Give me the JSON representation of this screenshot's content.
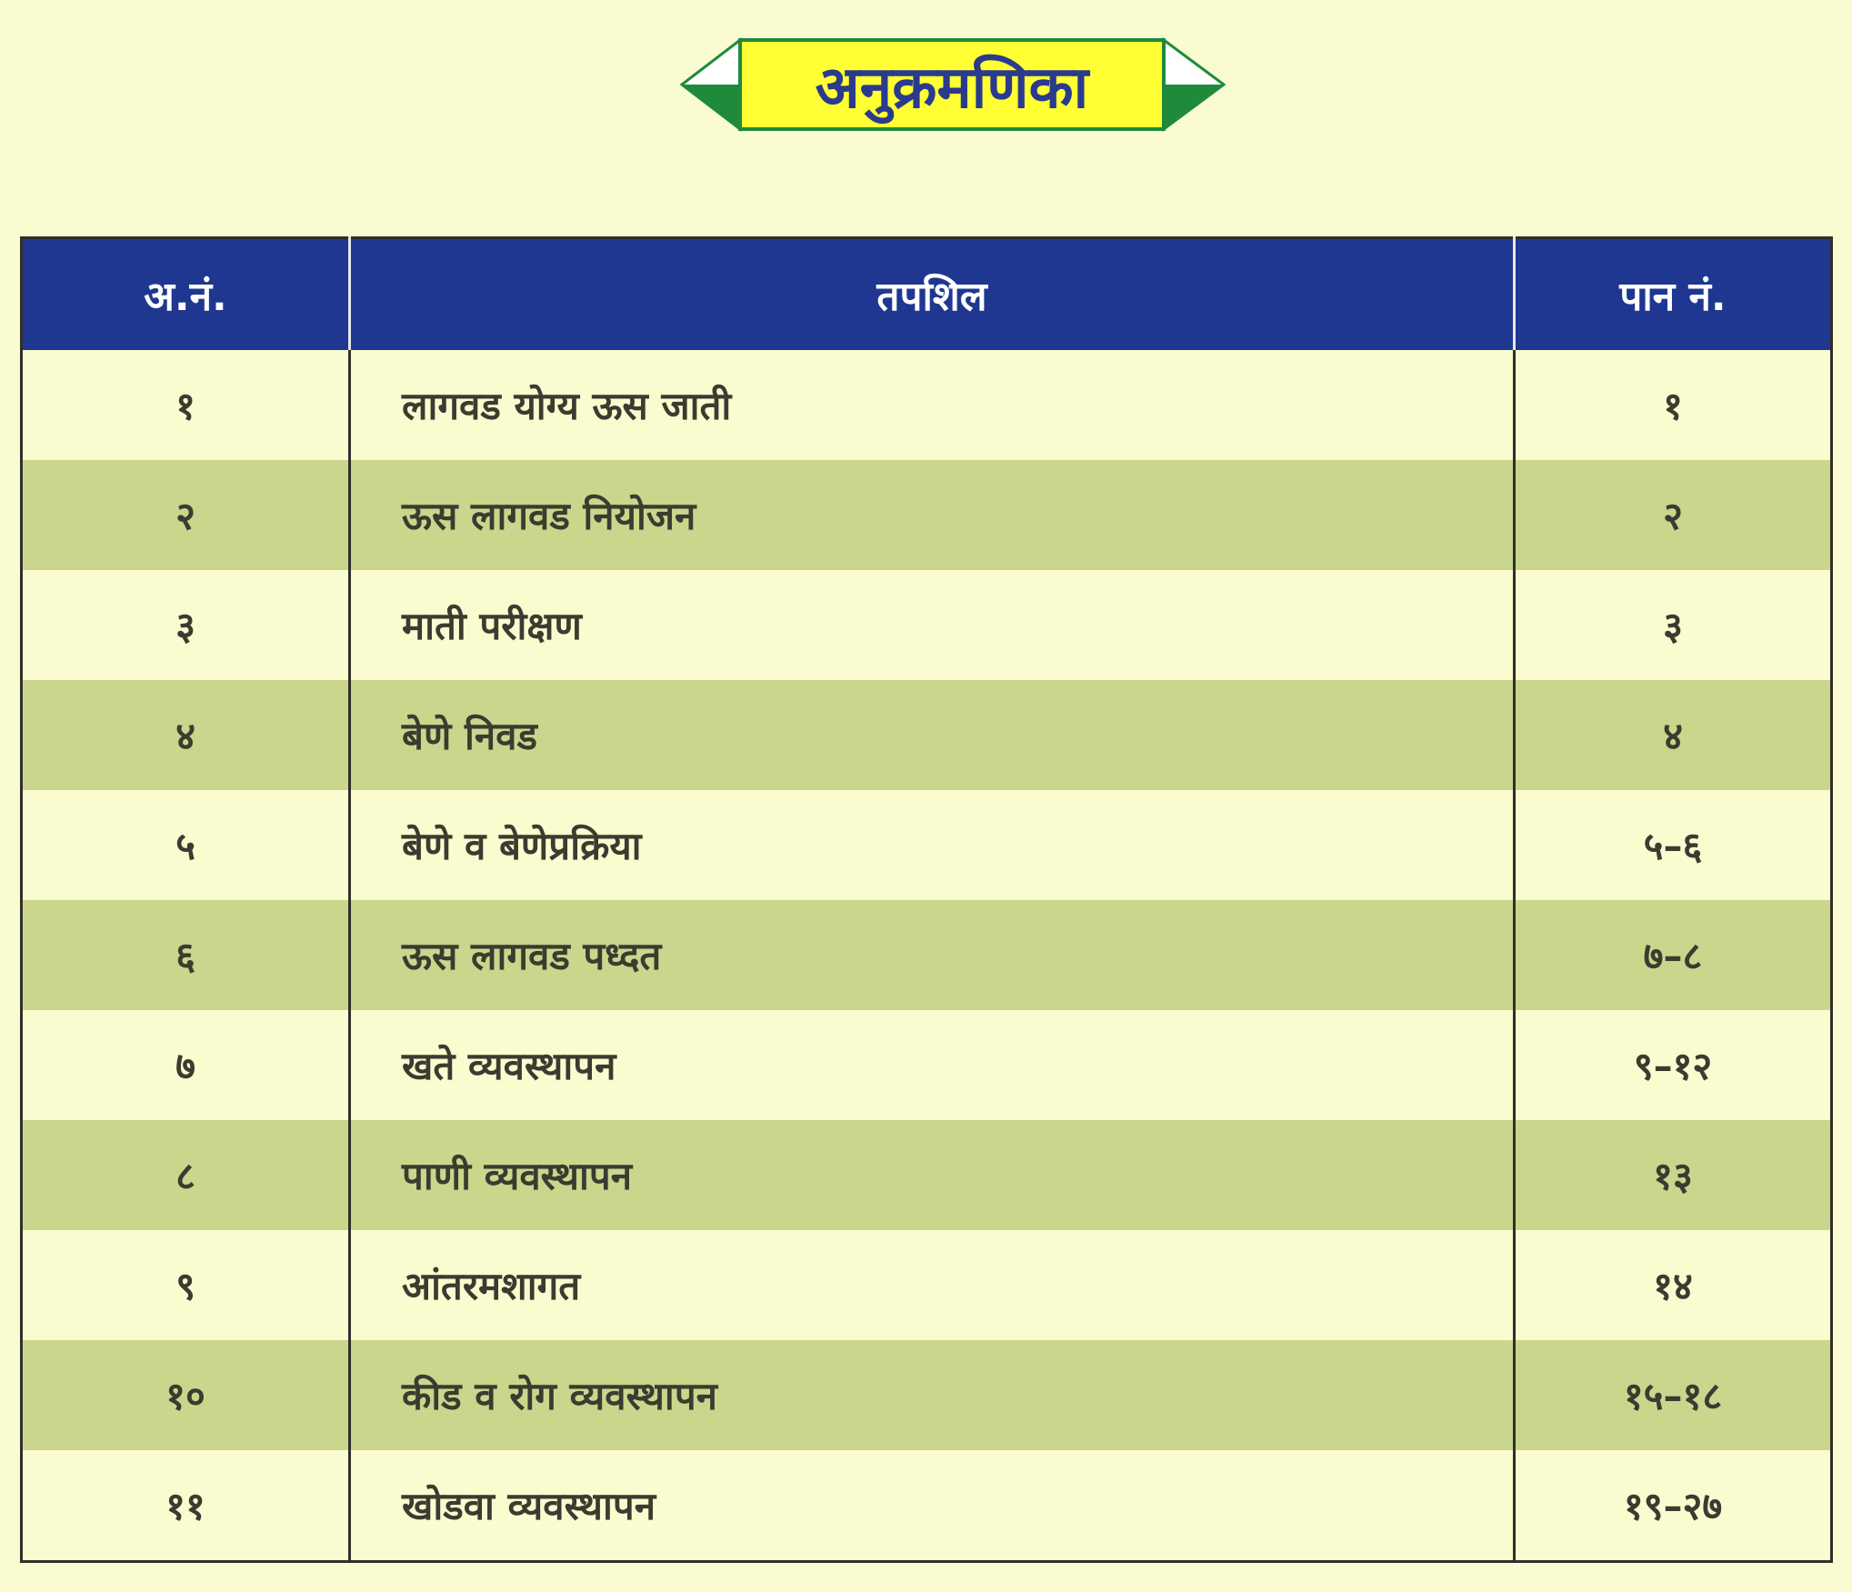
{
  "title": "अनुक्रमणिका",
  "colors": {
    "header_bg": "#1f3790",
    "stripe": "#c9d68c",
    "background": "#fbfbd0",
    "banner_fill": "#ffff33",
    "banner_border": "#1f8a3c"
  },
  "table": {
    "headers": [
      "अ.नं.",
      "तपशिल",
      "पान नं."
    ],
    "rows": [
      {
        "no": "१",
        "detail": "लागवड योग्य ऊस जाती",
        "page": "१"
      },
      {
        "no": "२",
        "detail": "ऊस लागवड नियोजन",
        "page": "२"
      },
      {
        "no": "३",
        "detail": "माती परीक्षण",
        "page": "३"
      },
      {
        "no": "४",
        "detail": "बेणे निवड",
        "page": "४"
      },
      {
        "no": "५",
        "detail": "बेणे व बेणेप्रक्रिया",
        "page": "५–६"
      },
      {
        "no": "६",
        "detail": "ऊस लागवड पध्दत",
        "page": "७–८"
      },
      {
        "no": "७",
        "detail": "खते व्यवस्थापन",
        "page": "९–१२"
      },
      {
        "no": "८",
        "detail": "पाणी व्यवस्थापन",
        "page": "१३"
      },
      {
        "no": "९",
        "detail": "आंतरमशागत",
        "page": "१४"
      },
      {
        "no": "१०",
        "detail": "कीड व रोग व्यवस्थापन",
        "page": "१५–१८"
      },
      {
        "no": "११",
        "detail": "खोडवा व्यवस्थापन",
        "page": "१९–२७"
      }
    ]
  }
}
